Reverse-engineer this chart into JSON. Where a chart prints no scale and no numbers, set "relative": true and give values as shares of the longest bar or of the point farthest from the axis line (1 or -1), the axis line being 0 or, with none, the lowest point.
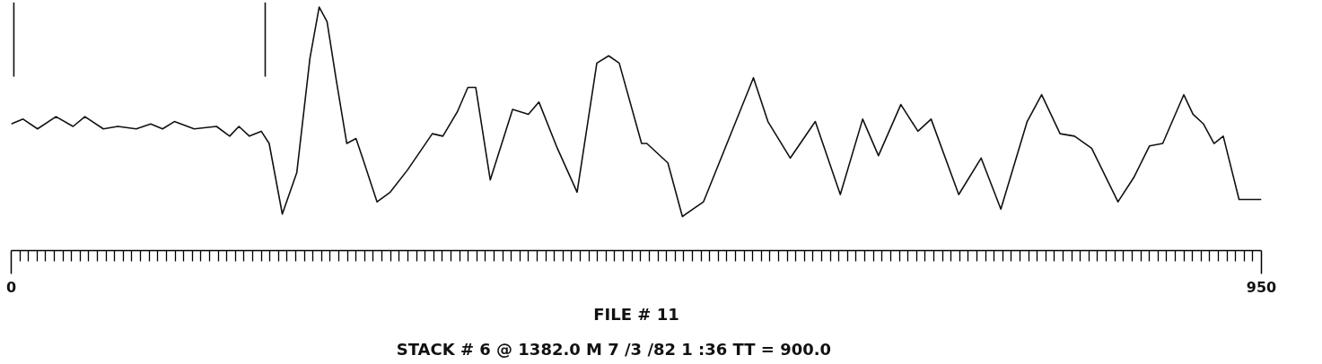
{
  "chart_data": {
    "type": "line",
    "relative": true,
    "x": [
      0,
      9,
      20,
      34,
      47,
      56,
      70,
      81,
      95,
      106,
      115,
      124,
      139,
      156,
      166,
      173,
      181,
      190,
      196,
      206,
      217,
      227,
      234,
      240,
      247,
      255,
      262,
      267,
      278,
      288,
      301,
      320,
      328,
      339,
      347,
      353,
      364,
      381,
      393,
      401,
      415,
      430,
      445,
      454,
      462,
      479,
      483,
      499,
      510,
      526,
      564,
      575,
      592,
      611,
      630,
      647,
      659,
      676,
      689,
      699,
      720,
      737,
      752,
      772,
      783,
      797,
      808,
      821,
      841,
      853,
      865,
      875,
      891,
      898,
      906,
      914,
      921,
      933,
      950
    ],
    "series": [
      {
        "color": "#111111",
        "values": [
          0.52,
          0.54,
          0.5,
          0.55,
          0.51,
          0.55,
          0.5,
          0.51,
          0.5,
          0.52,
          0.5,
          0.53,
          0.5,
          0.51,
          0.47,
          0.51,
          0.47,
          0.49,
          0.44,
          0.15,
          0.32,
          0.79,
          1.0,
          0.94,
          0.7,
          0.44,
          0.46,
          0.38,
          0.2,
          0.24,
          0.33,
          0.48,
          0.47,
          0.57,
          0.67,
          0.67,
          0.29,
          0.58,
          0.56,
          0.61,
          0.42,
          0.24,
          0.77,
          0.8,
          0.77,
          0.44,
          0.44,
          0.36,
          0.14,
          0.2,
          0.71,
          0.53,
          0.38,
          0.53,
          0.23,
          0.54,
          0.39,
          0.6,
          0.49,
          0.54,
          0.23,
          0.38,
          0.17,
          0.53,
          0.64,
          0.48,
          0.47,
          0.42,
          0.2,
          0.3,
          0.43,
          0.44,
          0.64,
          0.56,
          0.52,
          0.44,
          0.47,
          0.21,
          0.21
        ]
      }
    ],
    "xlim": [
      0,
      950
    ],
    "xticks": [
      0,
      950
    ],
    "tick_labels": "x",
    "grid": false,
    "ref_lines": [
      {
        "axis": "x",
        "value": 2
      },
      {
        "axis": "x",
        "value": 193
      }
    ],
    "annotations": [
      "FILE # 11",
      "STACK # 6 @  1382.0 M   7 /3 /82  1 :36   TT =   900.0"
    ]
  }
}
